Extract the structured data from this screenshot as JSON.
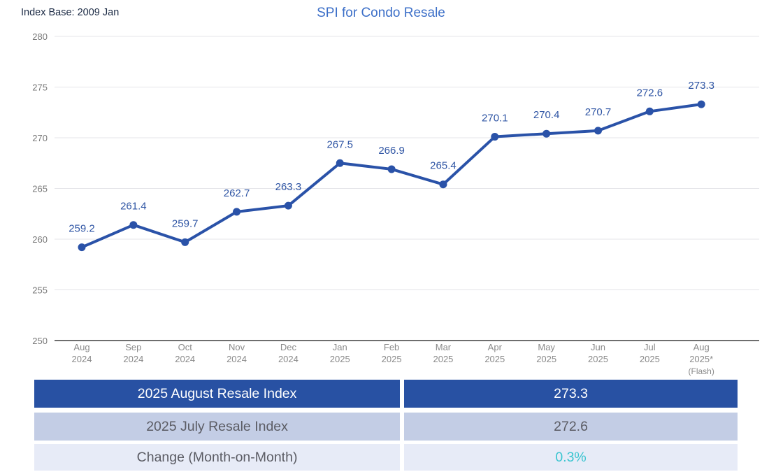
{
  "header": {
    "index_base": "Index Base: 2009 Jan",
    "title": "SPI for Condo Resale"
  },
  "chart_data": {
    "type": "line",
    "title": "SPI for Condo Resale",
    "categories": [
      [
        "Aug",
        "2024"
      ],
      [
        "Sep",
        "2024"
      ],
      [
        "Oct",
        "2024"
      ],
      [
        "Nov",
        "2024"
      ],
      [
        "Dec",
        "2024"
      ],
      [
        "Jan",
        "2025"
      ],
      [
        "Feb",
        "2025"
      ],
      [
        "Mar",
        "2025"
      ],
      [
        "Apr",
        "2025"
      ],
      [
        "May",
        "2025"
      ],
      [
        "Jun",
        "2025"
      ],
      [
        "Jul",
        "2025"
      ],
      [
        "Aug",
        "2025*",
        "(Flash)"
      ]
    ],
    "values": [
      259.2,
      261.4,
      259.7,
      262.7,
      263.3,
      267.5,
      266.9,
      265.4,
      270.1,
      270.4,
      270.7,
      272.6,
      273.3
    ],
    "ylim": [
      250,
      280
    ],
    "yticks": [
      250,
      255,
      260,
      265,
      270,
      275,
      280
    ],
    "grid": true,
    "legend": "none",
    "line_color": "#2A52A8",
    "marker_color": "#2A52A8",
    "data_label_color": "#2F55A4",
    "gridline_color": "#E4E4E8",
    "axis_line_color": "#6E6E6E"
  },
  "summary_table": {
    "rows": [
      {
        "label": "2025 August Resale Index",
        "value": "273.3",
        "bg": "#2851A3",
        "label_color": "#FFFFFF",
        "value_color": "#FFFFFF"
      },
      {
        "label": "2025 July Resale Index",
        "value": "272.6",
        "bg": "#C3CDE5",
        "label_color": "#5B5C64",
        "value_color": "#5B5C64"
      },
      {
        "label": "Change (Month-on-Month)",
        "value": "0.3%",
        "bg": "#E7EBF7",
        "label_color": "#5B5C64",
        "value_color": "#3BC5D0"
      }
    ]
  },
  "colors": {
    "title": "#3C6FC8",
    "index_base_text": "#1B2A44",
    "ytick_text": "#7A7A7A",
    "xtick_text": "#8A8A8A"
  }
}
